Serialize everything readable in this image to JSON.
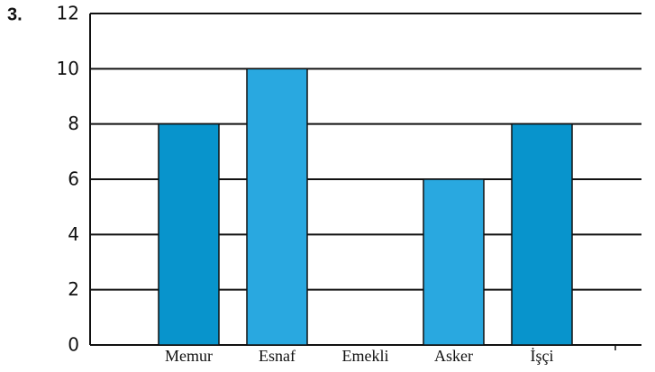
{
  "question_number": "3.",
  "chart_data": {
    "type": "bar",
    "categories": [
      "Memur",
      "Esnaf",
      "Emekli",
      "Asker",
      "İşçi"
    ],
    "values": [
      8,
      10,
      0,
      6,
      8
    ],
    "colors": [
      "#0894cc",
      "#29a8e0",
      "#29a8e0",
      "#29a8e0",
      "#0894cc"
    ],
    "ylim": [
      0,
      12
    ],
    "yticks": [
      0,
      2,
      4,
      6,
      8,
      10,
      12
    ],
    "grid": true
  }
}
